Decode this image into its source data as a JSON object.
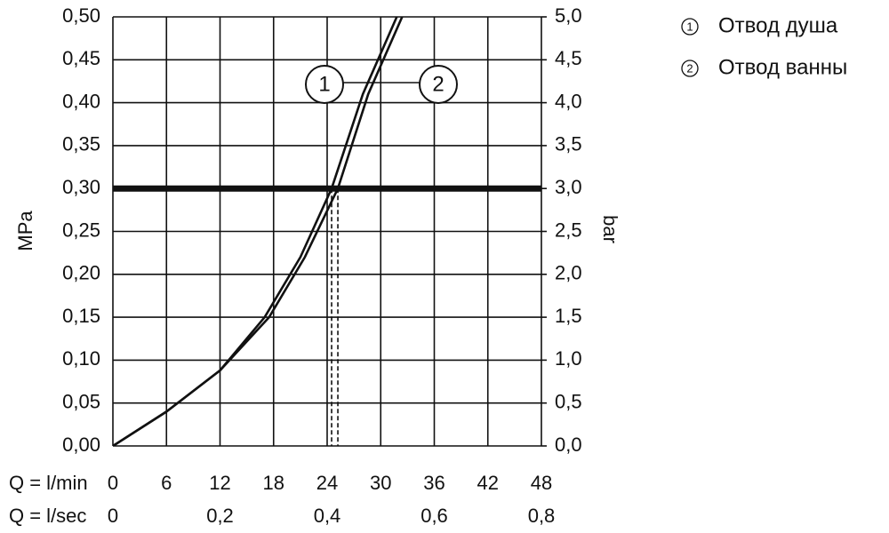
{
  "chart_data": {
    "type": "line",
    "x_label": "Q = l/min",
    "x2_label": "Q = l/sec",
    "y_label": "MPa",
    "y2_label": "bar",
    "xlim": [
      0,
      48
    ],
    "xticks": [
      0,
      6,
      12,
      18,
      24,
      30,
      36,
      42,
      48
    ],
    "x2lim": [
      0,
      0.8
    ],
    "x2ticks": [
      0,
      {
        "value": 0.2,
        "label": "0,2"
      },
      {
        "value": 0.4,
        "label": "0,4"
      },
      {
        "value": 0.6,
        "label": "0,6"
      },
      {
        "value": 0.8,
        "label": "0,8"
      }
    ],
    "ylim": [
      0,
      0.5
    ],
    "yticks": [
      {
        "value": 0,
        "label": "0,00"
      },
      {
        "value": 0.05,
        "label": "0,05"
      },
      {
        "value": 0.1,
        "label": "0,10"
      },
      {
        "value": 0.15,
        "label": "0,15"
      },
      {
        "value": 0.2,
        "label": "0,20"
      },
      {
        "value": 0.25,
        "label": "0,25"
      },
      {
        "value": 0.3,
        "label": "0,30"
      },
      {
        "value": 0.35,
        "label": "0,35"
      },
      {
        "value": 0.4,
        "label": "0,40"
      },
      {
        "value": 0.45,
        "label": "0,45"
      },
      {
        "value": 0.5,
        "label": "0,50"
      }
    ],
    "y2lim": [
      0,
      5
    ],
    "y2ticks": [
      {
        "value": 0,
        "label": "0,0"
      },
      {
        "value": 0.5,
        "label": "0,5"
      },
      {
        "value": 1,
        "label": "1,0"
      },
      {
        "value": 1.5,
        "label": "1,5"
      },
      {
        "value": 2,
        "label": "2,0"
      },
      {
        "value": 2.5,
        "label": "2,5"
      },
      {
        "value": 3,
        "label": "3,0"
      },
      {
        "value": 3.5,
        "label": "3,5"
      },
      {
        "value": 4,
        "label": "4,0"
      },
      {
        "value": 4.5,
        "label": "4,5"
      },
      {
        "value": 5,
        "label": "5,0"
      }
    ],
    "grid": true,
    "reference_line": 0.3,
    "series": [
      {
        "name": "Отвод душа",
        "marker_label": "1",
        "color": "#111111",
        "x": [
          0,
          6,
          12,
          17,
          21,
          24.5,
          28,
          31.8
        ],
        "values": [
          0,
          0.04,
          0.088,
          0.15,
          0.22,
          0.3,
          0.41,
          0.5
        ]
      },
      {
        "name": "Отвод ванны",
        "marker_label": "2",
        "color": "#111111",
        "x": [
          0,
          6,
          12,
          17.5,
          21.5,
          25.2,
          28.6,
          32.4
        ],
        "values": [
          0,
          0.04,
          0.088,
          0.15,
          0.22,
          0.3,
          0.41,
          0.5
        ]
      }
    ]
  }
}
